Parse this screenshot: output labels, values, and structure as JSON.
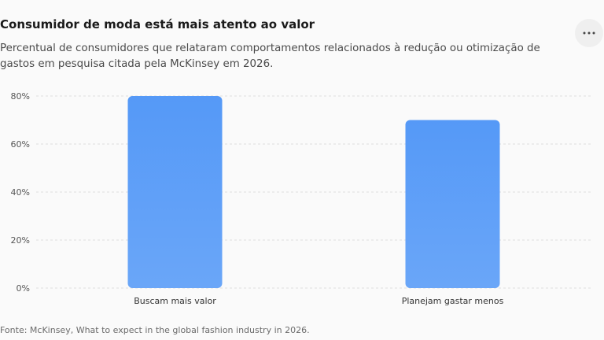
{
  "header": {
    "title": "Consumidor de moda está mais atento ao valor",
    "subtitle": "Percentual de consumidores que relataram comportamentos relacionados à redução ou otimização de gastos em pesquisa citada pela McKinsey em 2026.",
    "menu_icon": "more-horizontal-icon"
  },
  "footer": {
    "source": "Fonte: McKinsey, What to expect in the global fashion industry in 2026."
  },
  "chart_data": {
    "type": "bar",
    "title": "",
    "xlabel": "",
    "ylabel": "",
    "categories": [
      "Buscam mais valor",
      "Planejam gastar menos"
    ],
    "values": [
      80,
      70
    ],
    "unit": "%",
    "ylim": [
      0,
      80
    ],
    "yticks": [
      0,
      20,
      40,
      60,
      80
    ],
    "ytick_labels": [
      "0%",
      "20%",
      "40%",
      "60%",
      "80%"
    ],
    "grid": true,
    "legend": "none",
    "colors": {
      "bar_top": "#5599f7",
      "bar_bottom": "#6aa6f8",
      "grid": "#dddddd"
    }
  }
}
